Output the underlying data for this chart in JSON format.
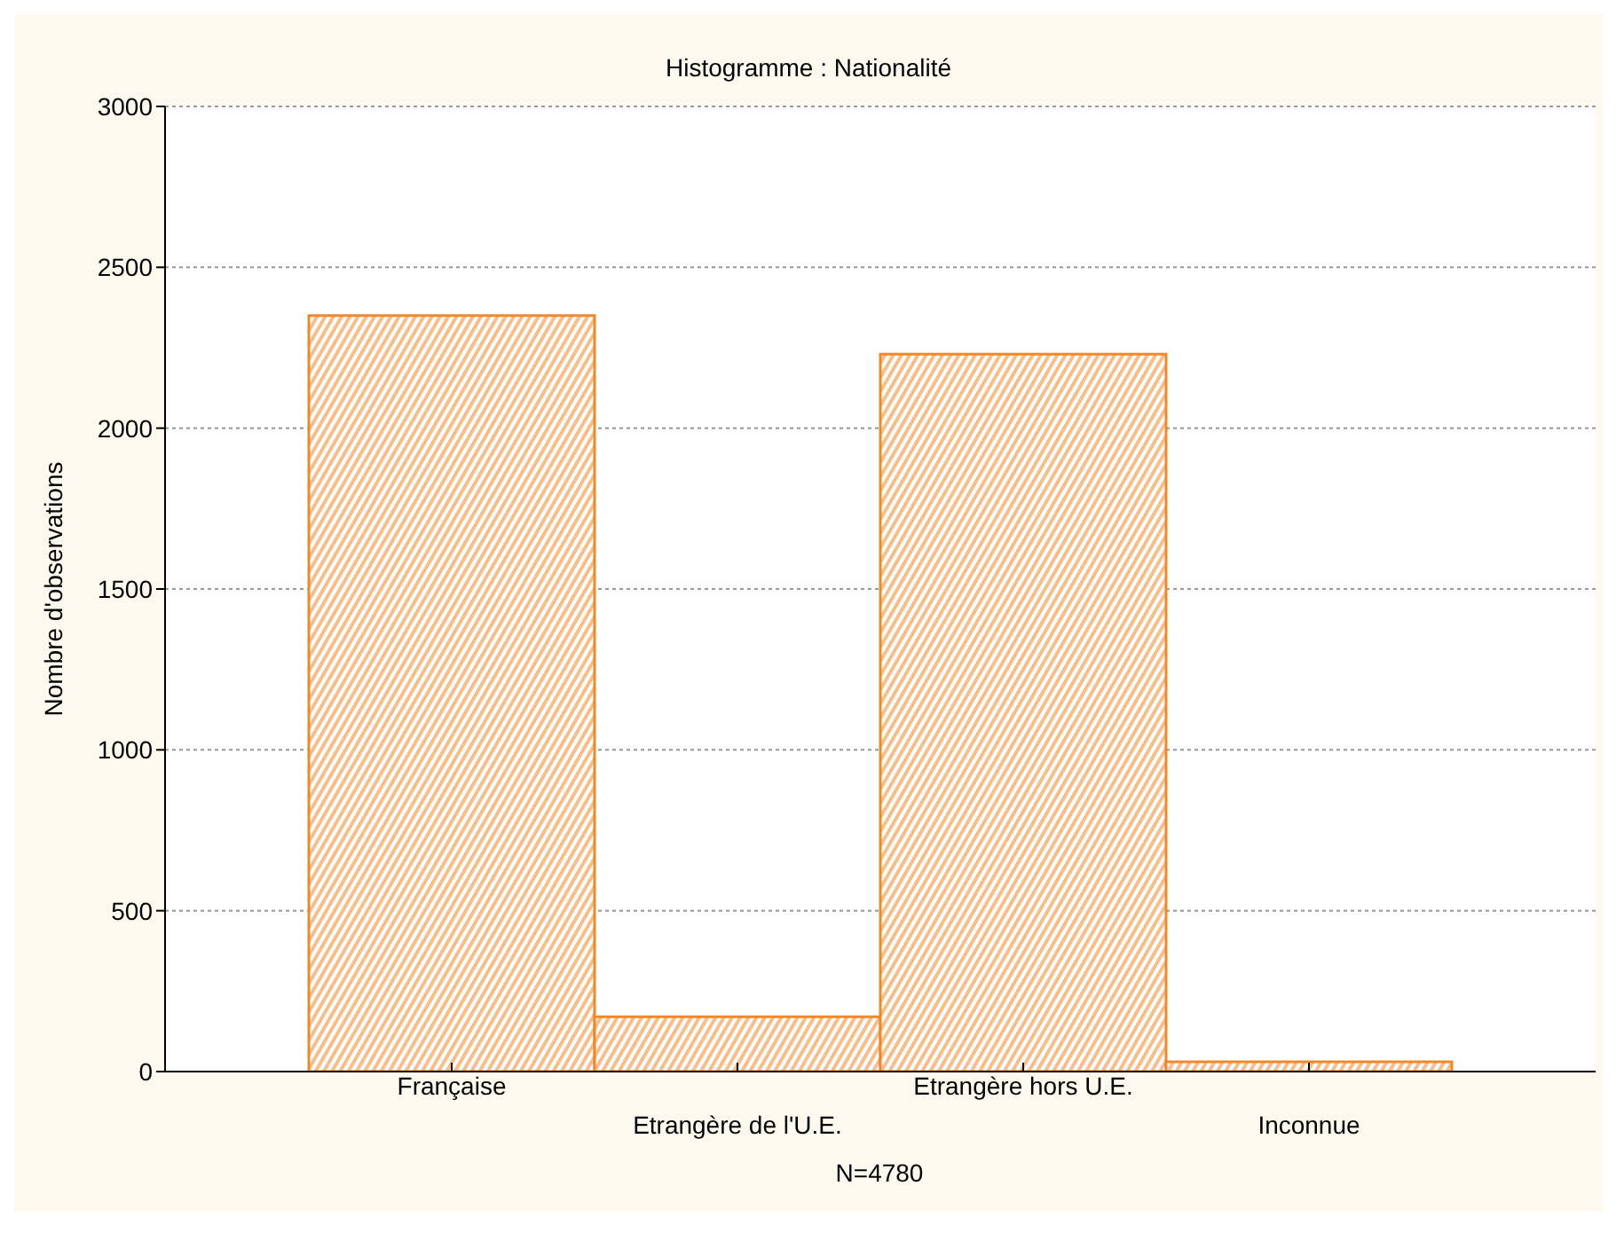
{
  "chart_data": {
    "type": "bar",
    "title": "Histogramme : Nationalité",
    "ylabel": "Nombre d'observations",
    "categories": [
      "Française",
      "Etrangère de l'U.E.",
      "Etrangère hors U.E.",
      "Inconnue"
    ],
    "values": [
      2350,
      170,
      2230,
      30
    ],
    "color": "#f0892a",
    "ylim": [
      0,
      3000
    ],
    "yticks": [
      0,
      500,
      1000,
      1500,
      2000,
      2500,
      3000
    ],
    "grid": "y",
    "legend": false,
    "annotations": [
      "N=4780"
    ]
  }
}
